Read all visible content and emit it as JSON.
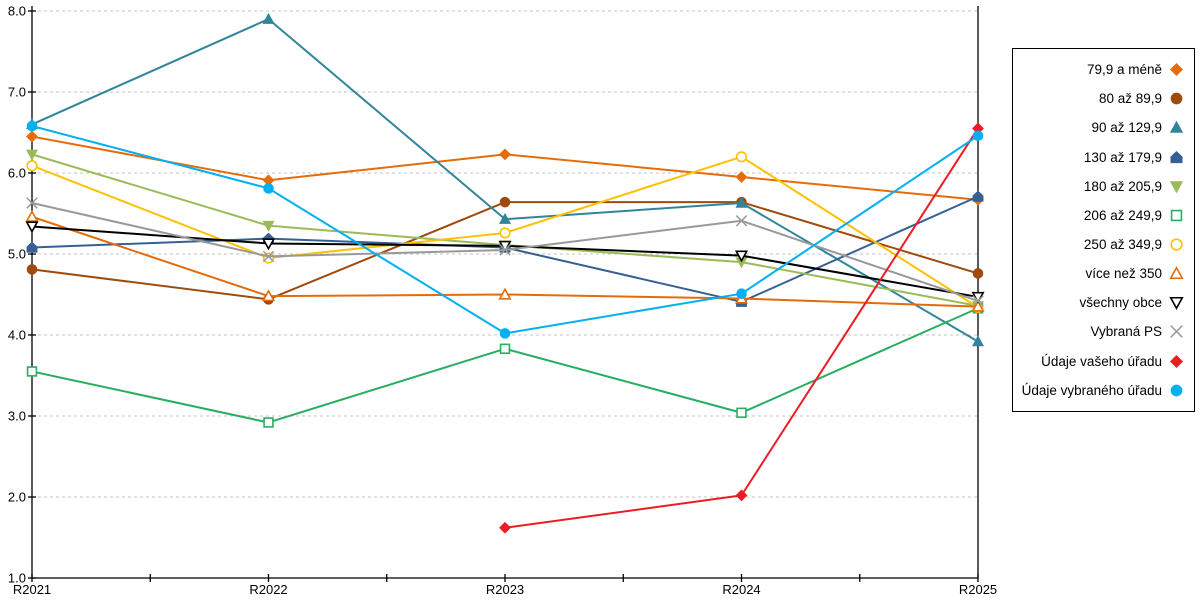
{
  "chart_data": {
    "type": "line",
    "title": "",
    "xlabel": "",
    "ylabel": "",
    "categories": [
      "R2021",
      "R2022",
      "R2023",
      "R2024",
      "R2025"
    ],
    "ylim": [
      1.0,
      8.0
    ],
    "y_ticks": [
      8.0,
      7.0,
      6.0,
      5.0,
      4.0,
      3.0,
      2.0,
      1.0
    ],
    "y_tick_labels": [
      "8.0",
      "7.0",
      "6.0",
      "5.0",
      "4.0",
      "3.0",
      "2.0",
      "1.0"
    ],
    "grid": "horizontal-dashed",
    "legend_position": "right",
    "axis_color": "#000000",
    "grid_color": "#c3c3c3",
    "series": [
      {
        "name": "79,9 a méně",
        "color": "#e46c0a",
        "marker": "diamond",
        "fill": "filled",
        "values": [
          6.45,
          5.91,
          6.23,
          5.95,
          5.67
        ]
      },
      {
        "name": "80 až 89,9",
        "color": "#9e4b0d",
        "marker": "circle",
        "fill": "filled",
        "values": [
          4.81,
          4.44,
          5.64,
          5.64,
          4.76
        ]
      },
      {
        "name": "90 až 129,9",
        "color": "#31859b",
        "marker": "triangle-up",
        "fill": "filled",
        "values": [
          6.6,
          7.9,
          5.43,
          5.63,
          3.92
        ]
      },
      {
        "name": "130 až 179,9",
        "color": "#376092",
        "marker": "house",
        "fill": "filled",
        "values": [
          5.08,
          5.19,
          5.08,
          4.41,
          5.71
        ]
      },
      {
        "name": "180 až 205,9",
        "color": "#9bbb59",
        "marker": "triangle-down",
        "fill": "filled",
        "values": [
          6.23,
          5.35,
          5.11,
          4.9,
          4.36
        ]
      },
      {
        "name": "206 až 249,9",
        "color": "#27ae60",
        "marker": "square",
        "fill": "open",
        "values": [
          3.55,
          2.92,
          3.83,
          3.04,
          4.33
        ]
      },
      {
        "name": "250 až 349,9",
        "color": "#ffc000",
        "marker": "circle",
        "fill": "open",
        "values": [
          6.09,
          4.95,
          5.26,
          6.2,
          4.34
        ]
      },
      {
        "name": "více než 350",
        "color": "#e46c0a",
        "marker": "triangle-up",
        "fill": "open",
        "values": [
          5.46,
          4.48,
          4.5,
          4.45,
          4.35
        ]
      },
      {
        "name": "všechny obce",
        "color": "#000000",
        "marker": "triangle-down",
        "fill": "open",
        "values": [
          5.34,
          5.13,
          5.1,
          4.98,
          4.47
        ]
      },
      {
        "name": "Vybraná PS",
        "color": "#999999",
        "marker": "x",
        "fill": "open",
        "values": [
          5.63,
          4.97,
          5.05,
          5.41,
          4.42
        ]
      },
      {
        "name": "Údaje vašeho úřadu",
        "color": "#ed1c24",
        "marker": "diamond",
        "fill": "filled",
        "values": [
          null,
          null,
          1.62,
          2.02,
          6.55
        ]
      },
      {
        "name": "Údaje vybraného úřadu",
        "color": "#00b0f0",
        "marker": "circle",
        "fill": "filled",
        "values": [
          6.58,
          5.81,
          4.02,
          4.51,
          6.46
        ]
      }
    ]
  }
}
